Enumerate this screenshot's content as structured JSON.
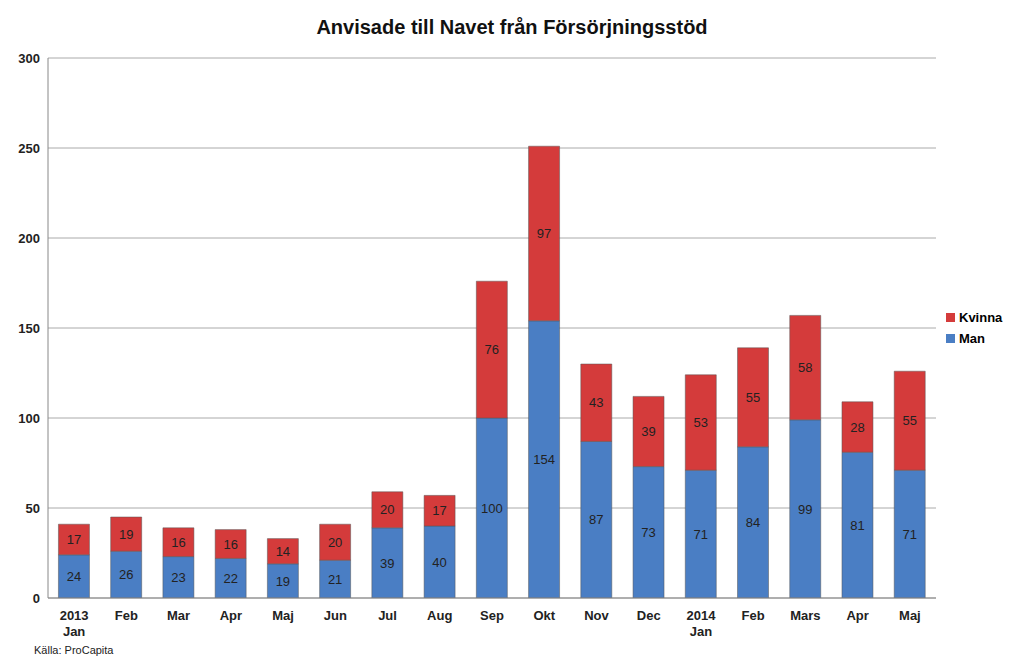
{
  "chart_data": {
    "type": "bar",
    "title": "Anvisade till Navet från Försörjningsstöd",
    "annotation": "Källa: ProCapita",
    "categories": [
      "2013\nJan",
      "Feb",
      "Mar",
      "Apr",
      "Maj",
      "Jun",
      "Jul",
      "Aug",
      "Sep",
      "Okt",
      "Nov",
      "Dec",
      "2014\nJan",
      "Feb",
      "Mars",
      "Apr",
      "Maj"
    ],
    "series": [
      {
        "name": "Man",
        "color": "#4a7ec4",
        "values": [
          24,
          26,
          23,
          22,
          19,
          21,
          39,
          40,
          100,
          154,
          87,
          73,
          71,
          84,
          99,
          81,
          71
        ]
      },
      {
        "name": "Kvinna",
        "color": "#d43b3b",
        "values": [
          17,
          19,
          16,
          16,
          14,
          20,
          20,
          17,
          76,
          97,
          43,
          39,
          53,
          55,
          58,
          28,
          55
        ]
      }
    ],
    "ylim": [
      0,
      300
    ],
    "yticks": [
      0,
      50,
      100,
      150,
      200,
      250,
      300
    ],
    "grid": true,
    "stacked": true,
    "data_labels": true,
    "legend": "right"
  }
}
